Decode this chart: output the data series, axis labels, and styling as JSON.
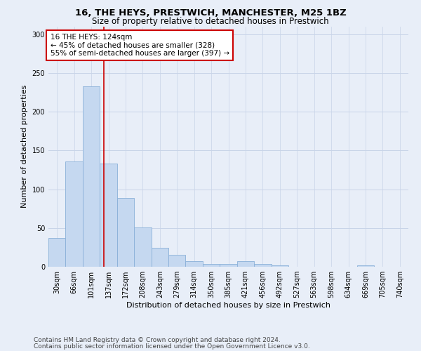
{
  "title_line1": "16, THE HEYS, PRESTWICH, MANCHESTER, M25 1BZ",
  "title_line2": "Size of property relative to detached houses in Prestwich",
  "xlabel": "Distribution of detached houses by size in Prestwich",
  "ylabel": "Number of detached properties",
  "bar_labels": [
    "30sqm",
    "66sqm",
    "101sqm",
    "137sqm",
    "172sqm",
    "208sqm",
    "243sqm",
    "279sqm",
    "314sqm",
    "350sqm",
    "385sqm",
    "421sqm",
    "456sqm",
    "492sqm",
    "527sqm",
    "563sqm",
    "598sqm",
    "634sqm",
    "669sqm",
    "705sqm",
    "740sqm"
  ],
  "bar_values": [
    37,
    136,
    233,
    133,
    89,
    51,
    24,
    15,
    7,
    4,
    4,
    7,
    4,
    2,
    0,
    0,
    0,
    0,
    2,
    0,
    0
  ],
  "bar_color": "#c5d8f0",
  "bar_edge_color": "#8ab0d8",
  "grid_color": "#c8d4e8",
  "background_color": "#e8eef8",
  "annotation_line1": "16 THE HEYS: 124sqm",
  "annotation_line2": "← 45% of detached houses are smaller (328)",
  "annotation_line3": "55% of semi-detached houses are larger (397) →",
  "vline_x": 2.72,
  "vline_color": "#cc0000",
  "ylim": [
    0,
    310
  ],
  "yticks": [
    0,
    50,
    100,
    150,
    200,
    250,
    300
  ],
  "footer_line1": "Contains HM Land Registry data © Crown copyright and database right 2024.",
  "footer_line2": "Contains public sector information licensed under the Open Government Licence v3.0.",
  "title_fontsize": 9.5,
  "subtitle_fontsize": 8.5,
  "axis_label_fontsize": 8,
  "tick_fontsize": 7,
  "annotation_fontsize": 7.5,
  "footer_fontsize": 6.5
}
